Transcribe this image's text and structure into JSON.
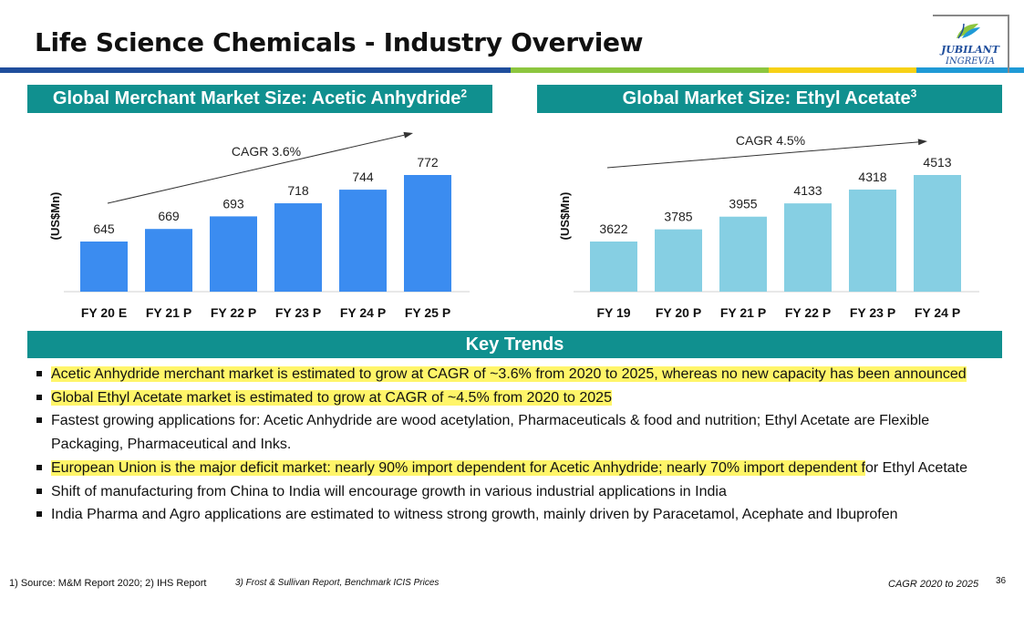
{
  "title": "Life Science Chemicals - Industry Overview",
  "logo": {
    "line1": "JUBILANT",
    "line2": "INGREVIA"
  },
  "colors": {
    "stripe": [
      "#1f4e9c",
      "#8dc63f",
      "#f7d117",
      "#1f9ad6"
    ],
    "banner": "#10908f",
    "bar_left": "#3b8cf0",
    "bar_right": "#86cfe3",
    "highlight": "#fff569"
  },
  "chart_data": [
    {
      "type": "bar",
      "title": "Global Merchant Market Size: Acetic Anhydride",
      "title_sup": "2",
      "ylabel": "(US$Mn)",
      "xlabel": "",
      "categories": [
        "FY 20 E",
        "FY 21 P",
        "FY 22 P",
        "FY 23 P",
        "FY 24 P",
        "FY 25 P"
      ],
      "values": [
        645,
        669,
        693,
        718,
        744,
        772
      ],
      "annotation": "CAGR 3.6%",
      "grid": false
    },
    {
      "type": "bar",
      "title": "Global Market Size: Ethyl Acetate",
      "title_sup": "3",
      "ylabel": "(US$Mn)",
      "xlabel": "",
      "categories": [
        "FY 19",
        "FY 20 P",
        "FY 21 P",
        "FY 22 P",
        "FY 23 P",
        "FY 24 P"
      ],
      "values": [
        3622,
        3785,
        3955,
        4133,
        4318,
        4513
      ],
      "annotation": "CAGR 4.5%",
      "grid": false
    }
  ],
  "key_trends": {
    "heading": "Key Trends",
    "items": [
      {
        "hl": "Acetic Anhydride merchant market is estimated to grow at CAGR of ~3.6% from 2020 to 2025, whereas no new capacity has been announced",
        "rest": ""
      },
      {
        "hl": "Global Ethyl Acetate market is estimated to grow at CAGR of ~4.5% from 2020 to 2025",
        "rest": ""
      },
      {
        "hl": "",
        "rest": "Fastest growing applications for: Acetic Anhydride are wood acetylation, Pharmaceuticals & food and nutrition; Ethyl Acetate are Flexible Packaging, Pharmaceutical and Inks."
      },
      {
        "hl": "European Union is the major deficit market: nearly 90% import dependent for Acetic Anhydride; nearly 70% import dependent f",
        "rest": "or Ethyl Acetate"
      },
      {
        "hl": "",
        "rest": "Shift of manufacturing from China to India will encourage growth in various industrial applications in India"
      },
      {
        "hl": "",
        "rest": "India Pharma and Agro applications are estimated to witness strong growth, mainly driven by Paracetamol, Acephate and Ibuprofen"
      }
    ]
  },
  "footer": {
    "source1": "1) Source: M&M Report 2020; 2) IHS Report",
    "source2": "3) Frost & Sullivan Report, Benchmark ICIS Prices",
    "cagr_note": "CAGR 2020 to 2025",
    "page": "36"
  }
}
